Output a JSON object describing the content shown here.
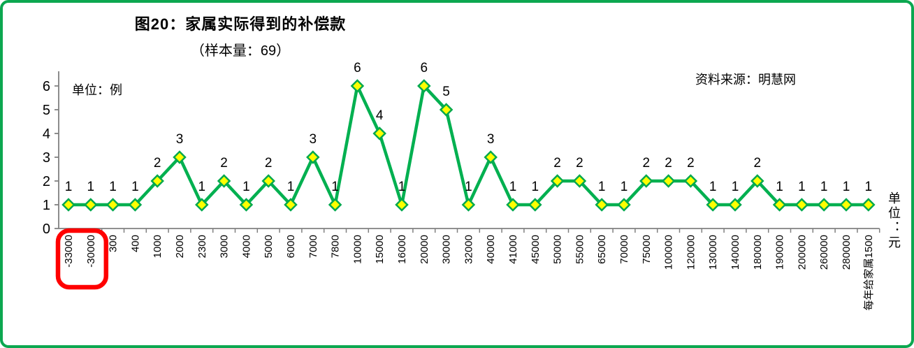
{
  "chart_data": {
    "type": "line",
    "title": "图20：家属实际得到的补偿款",
    "subtitle": "（样本量：69）",
    "sample_size": 69,
    "source": "资料来源：明慧网",
    "y_unit_label": "单位：例",
    "x_unit_label": "单位：元",
    "categories": [
      "-33000",
      "-30000",
      "300",
      "400",
      "1000",
      "2000",
      "2300",
      "3000",
      "4000",
      "5000",
      "6000",
      "7000",
      "7800",
      "10000",
      "15000",
      "16000",
      "20000",
      "30000",
      "32000",
      "40000",
      "41000",
      "45000",
      "50000",
      "55000",
      "65000",
      "70000",
      "75000",
      "100000",
      "120000",
      "130000",
      "140000",
      "180000",
      "190000",
      "200000",
      "260000",
      "280000",
      "每年给家属1500"
    ],
    "values": [
      1,
      1,
      1,
      1,
      2,
      3,
      1,
      2,
      1,
      2,
      1,
      3,
      1,
      6,
      4,
      1,
      6,
      5,
      1,
      3,
      1,
      1,
      2,
      2,
      1,
      1,
      2,
      2,
      2,
      1,
      1,
      2,
      1,
      1,
      1,
      1,
      1
    ],
    "ylim": [
      0,
      6
    ],
    "yticks": [
      0,
      1,
      2,
      3,
      4,
      5,
      6
    ],
    "grid": false,
    "legend_position": "none",
    "marker": "diamond",
    "data_labels": true,
    "annotation": {
      "type": "red-rounded-highlight-box",
      "highlighted_categories": [
        "-33000",
        "-30000"
      ],
      "color": "#FF0000"
    },
    "colors": {
      "line": "#00B050",
      "marker_fill": "#FFFF00",
      "marker_border": "#00A84D",
      "axis": "#808080",
      "text": "#000000",
      "frame_border": "#0CA750",
      "annotation": "#FF0000"
    }
  }
}
